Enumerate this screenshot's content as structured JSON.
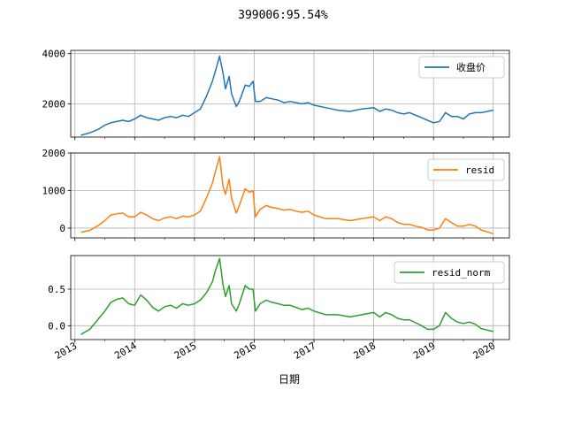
{
  "chart_data": {
    "type": "line",
    "title": "399006:95.54%",
    "xlabel": "日期",
    "x_tick_labels": [
      "2013",
      "2014",
      "2015",
      "2016",
      "2017",
      "2018",
      "2019",
      "2020"
    ],
    "x_range": [
      2012.93,
      2020.27
    ],
    "grid": true,
    "legend_placement": "upper right",
    "x_ticks": [
      2013,
      2014,
      2015,
      2016,
      2017,
      2018,
      2019,
      2020
    ],
    "x": [
      2013.1,
      2013.25,
      2013.4,
      2013.5,
      2013.6,
      2013.7,
      2013.8,
      2013.9,
      2014.0,
      2014.1,
      2014.2,
      2014.3,
      2014.4,
      2014.5,
      2014.6,
      2014.7,
      2014.8,
      2014.9,
      2015.0,
      2015.1,
      2015.2,
      2015.3,
      2015.35,
      2015.42,
      2015.48,
      2015.52,
      2015.58,
      2015.62,
      2015.7,
      2015.75,
      2015.85,
      2015.92,
      2015.98,
      2016.02,
      2016.1,
      2016.2,
      2016.3,
      2016.4,
      2016.5,
      2016.6,
      2016.7,
      2016.8,
      2016.9,
      2017.0,
      2017.2,
      2017.4,
      2017.6,
      2017.8,
      2018.0,
      2018.1,
      2018.2,
      2018.3,
      2018.4,
      2018.5,
      2018.6,
      2018.7,
      2018.8,
      2018.9,
      2019.0,
      2019.1,
      2019.2,
      2019.3,
      2019.4,
      2019.5,
      2019.6,
      2019.7,
      2019.8,
      2019.9,
      2020.0
    ],
    "series": [
      {
        "name": "收盘价",
        "color": "#1f77b4",
        "ylim": [
          680,
          4130
        ],
        "y_ticks": [
          2000,
          4000
        ],
        "y_tick_labels": [
          "2000",
          "4000"
        ],
        "values": [
          750,
          850,
          1000,
          1150,
          1250,
          1300,
          1350,
          1300,
          1400,
          1550,
          1450,
          1400,
          1350,
          1450,
          1500,
          1450,
          1550,
          1500,
          1650,
          1800,
          2300,
          2900,
          3300,
          3900,
          3200,
          2600,
          3100,
          2400,
          1900,
          2100,
          2750,
          2700,
          2900,
          2100,
          2100,
          2250,
          2200,
          2150,
          2050,
          2100,
          2050,
          2000,
          2050,
          1950,
          1850,
          1750,
          1700,
          1800,
          1850,
          1700,
          1800,
          1750,
          1650,
          1600,
          1650,
          1550,
          1450,
          1350,
          1250,
          1300,
          1650,
          1500,
          1500,
          1400,
          1600,
          1650,
          1650,
          1700,
          1750
        ]
      },
      {
        "name": "resid",
        "color": "#ff7f0e",
        "ylim": [
          -260,
          2000
        ],
        "y_ticks": [
          0,
          1000,
          2000
        ],
        "y_tick_labels": [
          "0",
          "1000",
          "2000"
        ],
        "values": [
          -110,
          -60,
          80,
          200,
          350,
          380,
          400,
          300,
          300,
          420,
          350,
          250,
          200,
          270,
          300,
          250,
          320,
          300,
          350,
          450,
          800,
          1200,
          1500,
          1900,
          1100,
          900,
          1300,
          800,
          400,
          600,
          1050,
          950,
          1000,
          300,
          500,
          600,
          550,
          520,
          480,
          500,
          450,
          420,
          450,
          350,
          250,
          250,
          200,
          250,
          300,
          200,
          300,
          250,
          150,
          100,
          100,
          50,
          20,
          -50,
          -50,
          0,
          250,
          150,
          50,
          50,
          100,
          50,
          -50,
          -100,
          -150
        ]
      },
      {
        "name": "resid_norm",
        "color": "#2ca02c",
        "ylim": [
          -0.19,
          0.96
        ],
        "y_ticks": [
          0,
          0.5
        ],
        "y_tick_labels": [
          "0.0",
          "0.5"
        ],
        "values": [
          -0.12,
          -0.05,
          0.1,
          0.2,
          0.32,
          0.36,
          0.38,
          0.3,
          0.28,
          0.42,
          0.35,
          0.25,
          0.2,
          0.26,
          0.28,
          0.24,
          0.3,
          0.28,
          0.3,
          0.35,
          0.45,
          0.6,
          0.75,
          0.92,
          0.55,
          0.4,
          0.55,
          0.3,
          0.2,
          0.3,
          0.55,
          0.5,
          0.5,
          0.2,
          0.3,
          0.35,
          0.32,
          0.3,
          0.28,
          0.28,
          0.25,
          0.22,
          0.24,
          0.2,
          0.15,
          0.15,
          0.12,
          0.15,
          0.18,
          0.12,
          0.18,
          0.15,
          0.1,
          0.08,
          0.08,
          0.04,
          0.0,
          -0.05,
          -0.05,
          0.0,
          0.18,
          0.1,
          0.05,
          0.03,
          0.05,
          0.02,
          -0.04,
          -0.06,
          -0.08
        ]
      }
    ]
  }
}
